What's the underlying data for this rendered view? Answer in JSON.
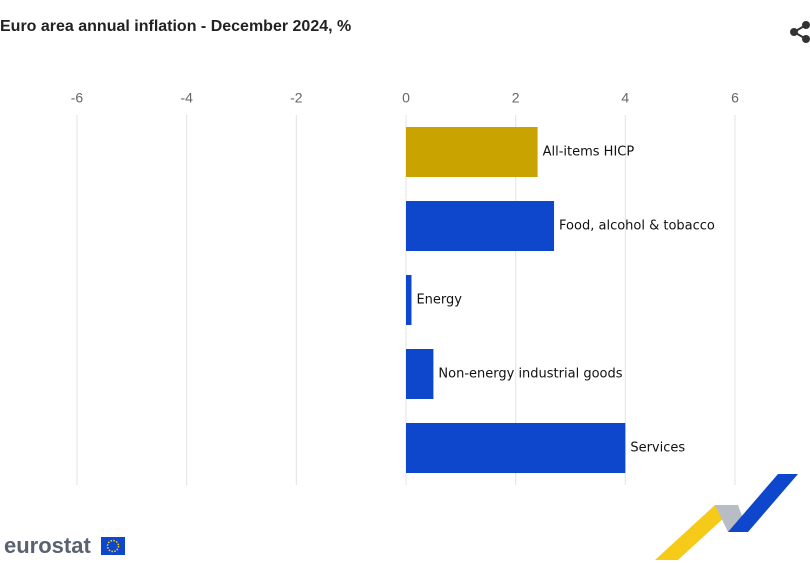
{
  "chart_data": {
    "type": "hbar",
    "title": "Euro area annual inflation - December 2024, %",
    "categories": [
      "All-items HICP",
      "Food, alcohol & tobacco",
      "Energy",
      "Non-energy industrial goods",
      "Services"
    ],
    "values": [
      2.4,
      2.7,
      0.1,
      0.5,
      4.0
    ],
    "colors": [
      "#c9a400",
      "#0e47cb",
      "#0e47cb",
      "#0e47cb",
      "#0e47cb"
    ],
    "xlim": [
      -6,
      6
    ],
    "xticks": [
      -6,
      -4,
      -2,
      0,
      2,
      4,
      6
    ],
    "grid": true
  },
  "branding": {
    "logo": "eurostat"
  }
}
